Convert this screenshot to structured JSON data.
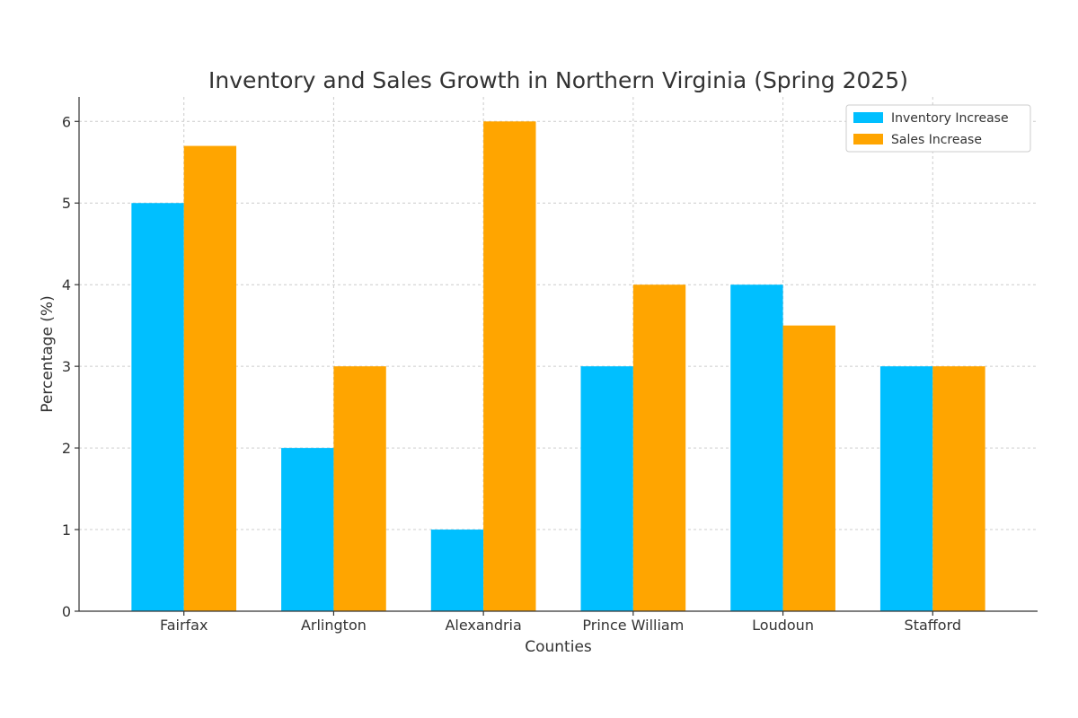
{
  "chart_data": {
    "type": "bar",
    "title": "Inventory and Sales Growth in Northern Virginia (Spring 2025)",
    "xlabel": "Counties",
    "ylabel": "Percentage (%)",
    "categories": [
      "Fairfax",
      "Arlington",
      "Alexandria",
      "Prince William",
      "Loudoun",
      "Stafford"
    ],
    "series": [
      {
        "name": "Inventory Increase",
        "values": [
          5,
          2,
          1,
          3,
          4,
          3
        ],
        "color": "#00bfff"
      },
      {
        "name": "Sales Increase",
        "values": [
          5.7,
          3,
          6,
          4,
          3.5,
          3
        ],
        "color": "#ffa500"
      }
    ],
    "ylim": [
      0,
      6.3
    ],
    "yticks": [
      0,
      1,
      2,
      3,
      4,
      5,
      6
    ],
    "grid": true,
    "legend_position": "top-right"
  }
}
